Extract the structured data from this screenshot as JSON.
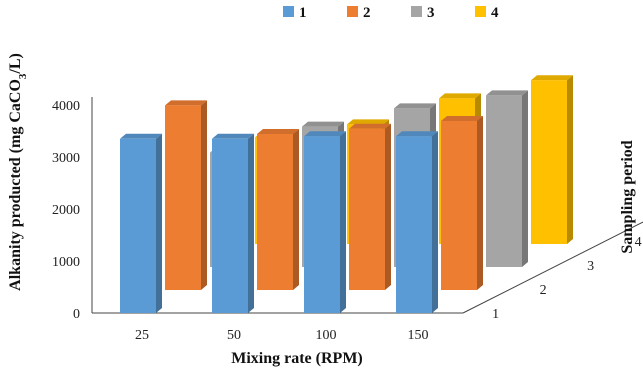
{
  "chart_data": {
    "type": "bar",
    "subtype": "3d-column",
    "title": "",
    "xlabel": "Mixing rate (RPM)",
    "ylabel": "Alkanity producted (mg CaCO3/L)",
    "ylabel_parts": {
      "before": "Alkanity producted (mg CaCO",
      "subscript": "3",
      "after": "/L)"
    },
    "zlabel": "Sampling period",
    "categories": [
      "25",
      "50",
      "100",
      "150"
    ],
    "yticks": [
      "0",
      "1000",
      "2000",
      "3000",
      "4000"
    ],
    "zticks": [
      "1",
      "2",
      "3",
      "4"
    ],
    "ylim": [
      0,
      4000
    ],
    "grid": false,
    "legend_position": "top",
    "series": [
      {
        "name": "1",
        "color": "#5B9BD5",
        "values": [
          3350,
          3350,
          3400,
          3400
        ]
      },
      {
        "name": "2",
        "color": "#ED7D31",
        "values": [
          3550,
          3000,
          3100,
          3250
        ]
      },
      {
        "name": "3",
        "color": "#A5A5A5",
        "values": [
          2200,
          2700,
          3050,
          3300
        ]
      },
      {
        "name": "4",
        "color": "#FFC000",
        "values": [
          2050,
          2300,
          2800,
          3150
        ]
      }
    ]
  }
}
